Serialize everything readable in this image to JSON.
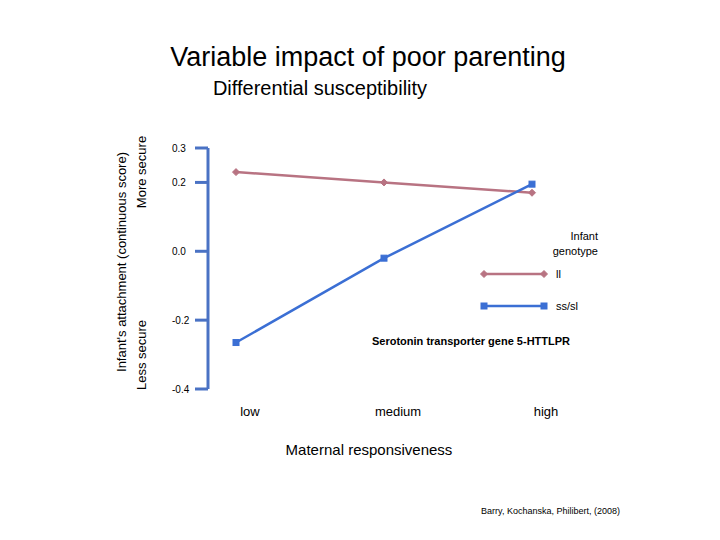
{
  "chart_data": {
    "type": "line",
    "title": "Variable impact of poor parenting",
    "subtitle": "Differential susceptibility",
    "y_label": "Infant's attachment (continuous score)",
    "y_sublabels": [
      "Less secure",
      "More secure"
    ],
    "x_label": "Maternal responsiveness",
    "legend_title": "Infant genotype",
    "annotations": [
      "Serotonin transporter gene 5-HTTLPR",
      "Barry, Kochanska, Philibert, (2008)"
    ],
    "categories": [
      "low",
      "medium",
      "high"
    ],
    "series": [
      {
        "name": "ll",
        "color": "#b87382",
        "marker": "diamond",
        "values": [
          0.23,
          0.2,
          0.17
        ]
      },
      {
        "name": "ss/sl",
        "color": "#3b6fd4",
        "marker": "square",
        "values": [
          -0.265,
          -0.02,
          0.195
        ]
      }
    ],
    "ylim": [
      -0.4,
      0.3
    ],
    "yticks": [
      0.3,
      0.2,
      {
        "value": 0,
        "label": "0.0"
      },
      -0.2,
      -0.4
    ],
    "legend": "right",
    "grid": false
  }
}
